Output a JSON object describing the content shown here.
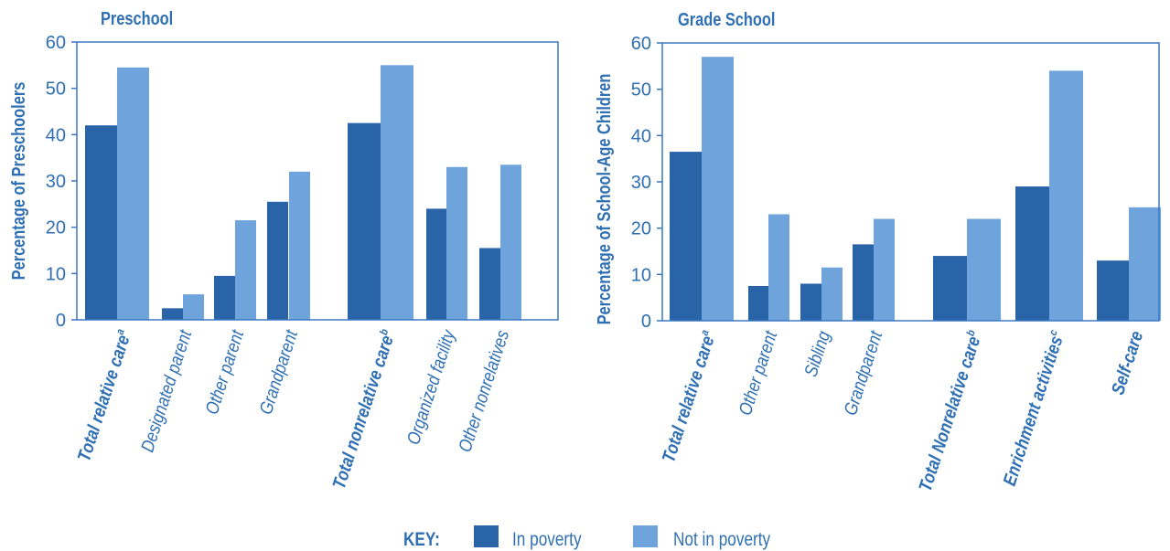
{
  "colors": {
    "in_poverty": "#2a64a8",
    "not_in_poverty": "#6ea3dc",
    "axis": "#3b78c0",
    "text": "#2f6fb3"
  },
  "legend": {
    "key_label": "KEY:",
    "series_in_poverty": "In poverty",
    "series_not_in_poverty": "Not in poverty"
  },
  "chart_data": [
    {
      "type": "bar",
      "title": "Preschool",
      "ylabel": "Percentage of Preschoolers",
      "xlabel": "",
      "ylim": [
        0,
        60
      ],
      "yticks": [
        0,
        10,
        20,
        30,
        40,
        50,
        60
      ],
      "legend_position": "bottom",
      "categories": [
        {
          "label": "Total relative care",
          "sup": "a",
          "bold": true
        },
        {
          "label": "Designated parent",
          "sup": "",
          "bold": false
        },
        {
          "label": "Other parent",
          "sup": "",
          "bold": false
        },
        {
          "label": "Grandparent",
          "sup": "",
          "bold": false
        },
        {
          "label": "Total nonrelative care",
          "sup": "b",
          "bold": true
        },
        {
          "label": "Organized facility",
          "sup": "",
          "bold": false
        },
        {
          "label": "Other nonrelatives",
          "sup": "",
          "bold": false
        }
      ],
      "series": [
        {
          "name": "In poverty",
          "values": [
            42,
            2.5,
            9.5,
            25.5,
            42.5,
            24,
            15.5
          ]
        },
        {
          "name": "Not in poverty",
          "values": [
            54.5,
            5.5,
            21.5,
            32,
            55,
            33,
            33.5
          ]
        }
      ]
    },
    {
      "type": "bar",
      "title": "Grade School",
      "ylabel": "Percentage of School-Age Children",
      "xlabel": "",
      "ylim": [
        0,
        60
      ],
      "yticks": [
        0,
        10,
        20,
        30,
        40,
        50,
        60
      ],
      "legend_position": "bottom",
      "categories": [
        {
          "label": "Total relative care",
          "sup": "a",
          "bold": true
        },
        {
          "label": "Other parent",
          "sup": "",
          "bold": false
        },
        {
          "label": "Sibling",
          "sup": "",
          "bold": false
        },
        {
          "label": "Grandparent",
          "sup": "",
          "bold": false
        },
        {
          "label": "Total Nonrelative care",
          "sup": "b",
          "bold": true
        },
        {
          "label": "Enrichment activities",
          "sup": "c",
          "bold": true
        },
        {
          "label": "Self-care",
          "sup": "",
          "bold": true
        }
      ],
      "series": [
        {
          "name": "In poverty",
          "values": [
            36.5,
            7.5,
            8,
            16.5,
            14,
            29,
            13
          ]
        },
        {
          "name": "Not in poverty",
          "values": [
            57,
            23,
            11.5,
            22,
            22,
            54,
            24.5
          ]
        }
      ]
    }
  ]
}
